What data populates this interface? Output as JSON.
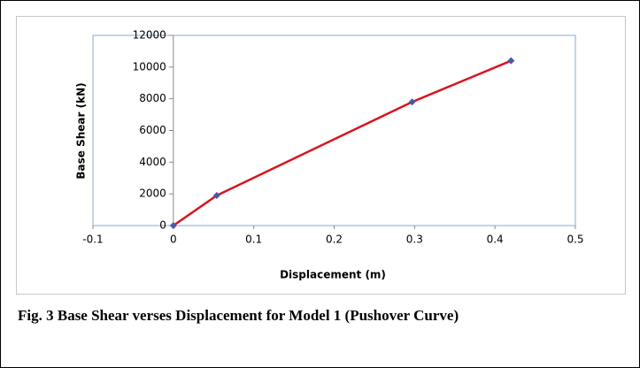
{
  "chart_data": {
    "type": "line",
    "x_label": "Displacement (m)",
    "y_label": "Base Shear (kN)",
    "caption": "Fig. 3 Base Shear verses Displacement for Model 1 (Pushover Curve)",
    "x": [
      0,
      0.054,
      0.297,
      0.42
    ],
    "values": [
      0,
      1900,
      7800,
      10400
    ],
    "color": "#d9141e",
    "marker_color": "#4b58a6",
    "xlim": [
      -0.1,
      0.5
    ],
    "xticks": [
      -0.1,
      0,
      0.1,
      0.2,
      0.3,
      0.4,
      0.5
    ],
    "ylim": [
      0,
      12000
    ],
    "yticks": [
      0,
      2000,
      4000,
      6000,
      8000,
      10000,
      12000
    ]
  }
}
